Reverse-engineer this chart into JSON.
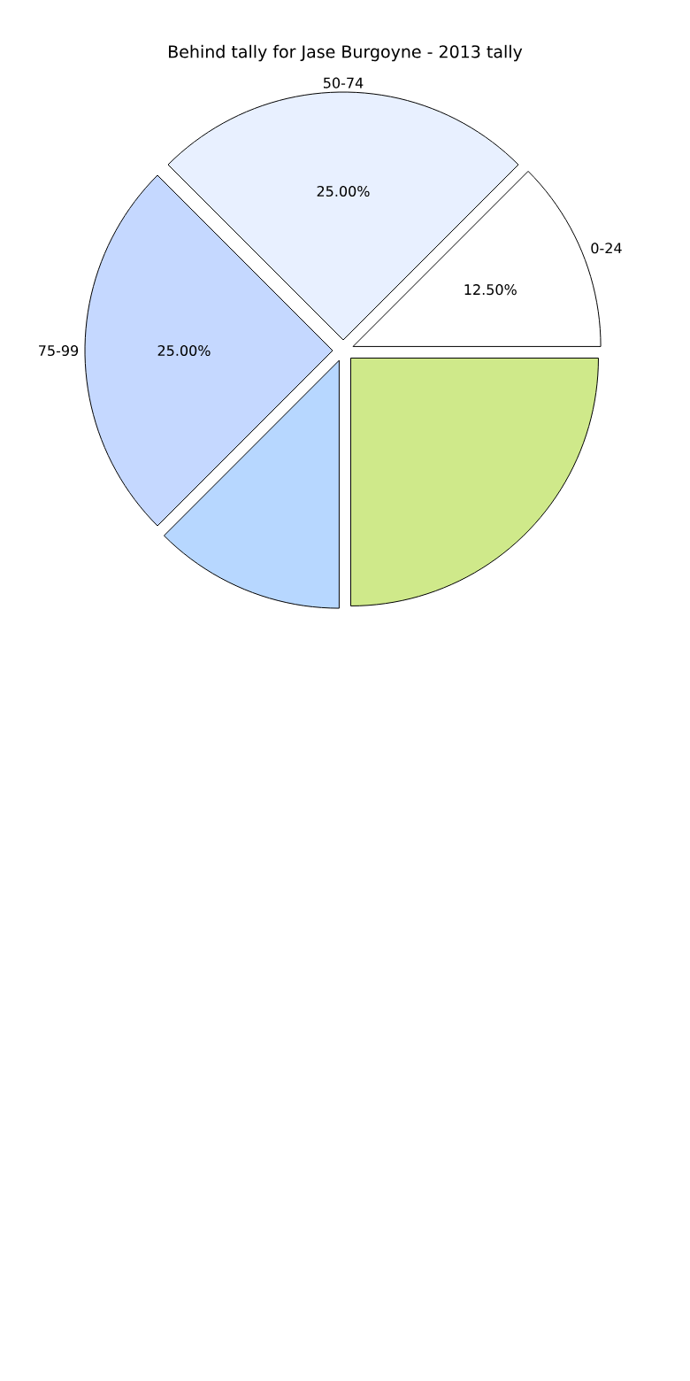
{
  "chart_data": {
    "type": "pie",
    "title": "Behind tally for Jase Burgoyne - 2013 tally",
    "categories": [
      "0-24",
      "50-74",
      "75-99",
      null,
      null
    ],
    "values": [
      12.5,
      25,
      25,
      12.5,
      25
    ],
    "colors": [
      "#ffffff",
      "#e8f0ff",
      "#c5d8ff",
      "#b7d7ff",
      "#cfe98a"
    ],
    "value_labels": [
      "12.50%",
      "25.00%",
      "25.00%",
      null,
      null
    ]
  }
}
